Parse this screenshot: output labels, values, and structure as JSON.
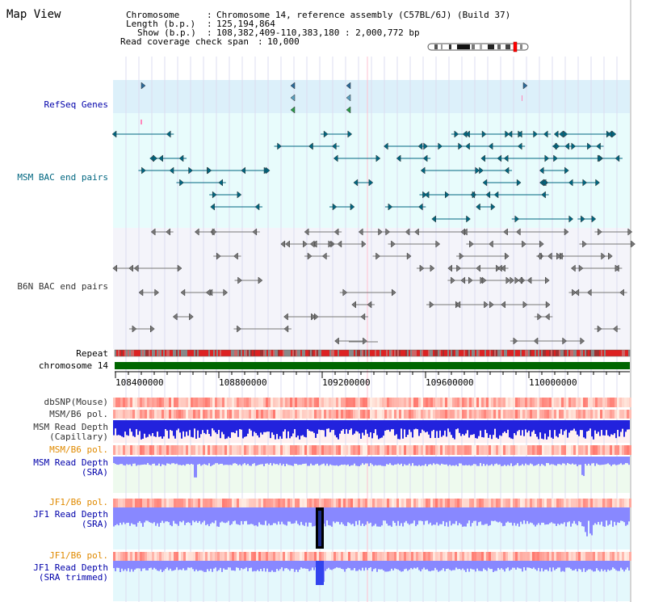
{
  "page_title": "Map View",
  "info": {
    "chromosome_key": "Chromosome",
    "chromosome_value": "Chromosome 14, reference assembly (C57BL/6J) (Build 37)",
    "length_key": "Length (b.p.)",
    "length_value": "125,194,864",
    "show_key": "Show (b.p.)",
    "show_value": "108,382,409-110,383,180 : 2,000,772 bp",
    "coverage_key": "Read coverage check span",
    "coverage_value": "10,000"
  },
  "tracks": {
    "refseq": "RefSeq Genes",
    "msm_bac": "MSM BAC end pairs",
    "b6n_bac": "B6N BAC end pairs",
    "repeat": "Repeat",
    "chromosome": "chromosome 14",
    "dbsnp": "dbSNP(Mouse)",
    "msm_pol1": "MSM/B6 pol.",
    "msm_depth_cap_1": "MSM Read Depth",
    "msm_depth_cap_2": "(Capillary)",
    "msm_pol2": "MSM/B6 pol.",
    "msm_depth_sra_1": "MSM Read Depth",
    "msm_depth_sra_2": "(SRA)",
    "jf1_pol1": "JF1/B6 pol.",
    "jf1_depth_sra_1": "JF1 Read Depth",
    "jf1_depth_sra_2": "(SRA)",
    "jf1_pol2": "JF1/B6 pol.",
    "jf1_trim_1": "JF1 Read Depth",
    "jf1_trim_2": "(SRA trimmed)"
  },
  "axis_ticks": [
    "108400000",
    "108800000",
    "109200000",
    "109600000",
    "110000000"
  ],
  "colors": {
    "refseq_bg": "#dcf0fa",
    "msm_bg": "#e8fcfc",
    "b6n_bg": "#f4f4fa",
    "chrom_green": "#006600",
    "depth_blue": "#2222dd",
    "depth_light": "#8888ff",
    "teal": "#006680"
  }
}
